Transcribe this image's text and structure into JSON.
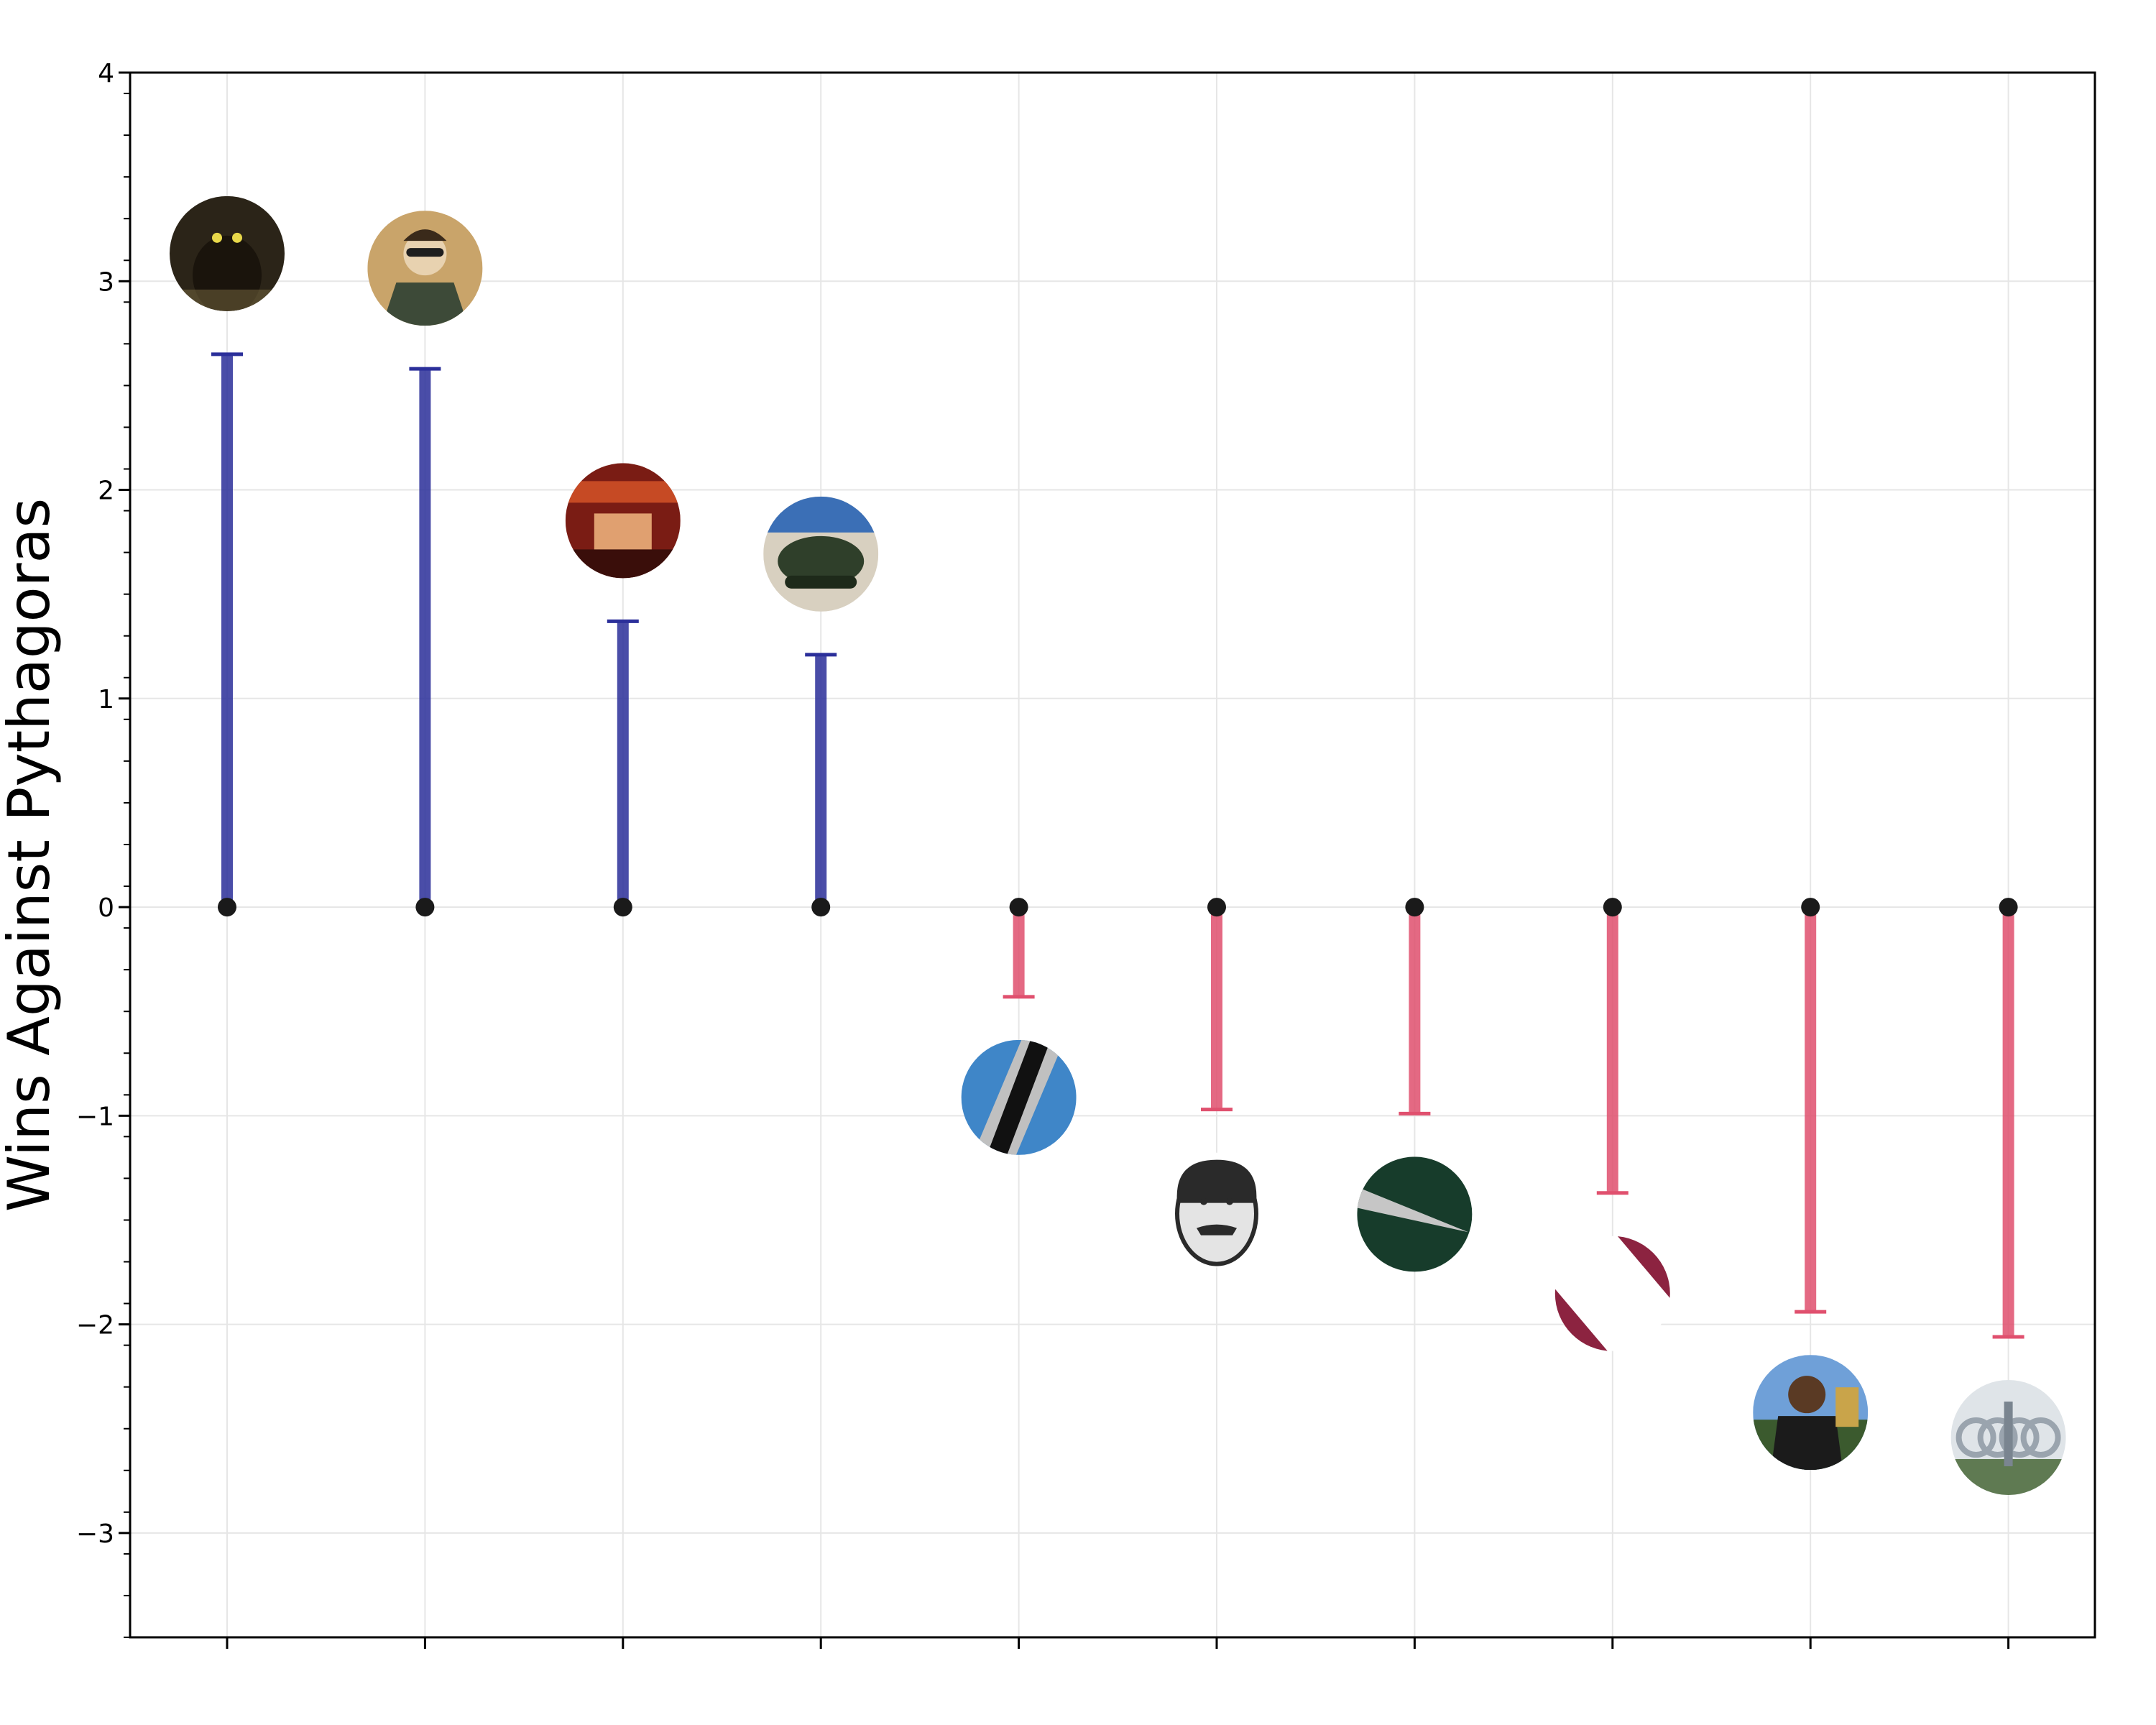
{
  "chart_data": {
    "type": "lollipop",
    "ylabel": "Wins Against Pythagoras",
    "ylim": [
      -3.5,
      4
    ],
    "yticks": [
      -3,
      -2,
      -1,
      0,
      1,
      2,
      3,
      4
    ],
    "ytick_labels": [
      "−3",
      "−2",
      "−1",
      "0",
      "1",
      "2",
      "3",
      "4"
    ],
    "grid": true,
    "positive_color": "#2b2f9a",
    "negative_color": "#e0506e",
    "base_dot_color": "#1a1a1a",
    "items": [
      {
        "value": 2.65,
        "icon": "glowing-eyes-cat-icon",
        "icon_colors": [
          "#2b2418",
          "#7a6a40",
          "#e8d84a"
        ]
      },
      {
        "value": 2.58,
        "icon": "pilot-with-aviators-icon",
        "icon_colors": [
          "#c9a46a",
          "#3d4a38",
          "#e8d2b0"
        ]
      },
      {
        "value": 1.37,
        "icon": "movie-poster-oceans-eight-icon",
        "icon_colors": [
          "#7a1c14",
          "#c64a24",
          "#e0a070"
        ]
      },
      {
        "value": 1.21,
        "icon": "bobsled-team-icon",
        "icon_colors": [
          "#3b6fb6",
          "#2f3f2a",
          "#d8d0c0"
        ]
      },
      {
        "value": -0.43,
        "icon": "blue-black-striped-flag-icon",
        "icon_colors": [
          "#3f86c8",
          "#111111",
          "#c0c0c0"
        ]
      },
      {
        "value": -0.97,
        "icon": "mustached-man-engraving-icon",
        "icon_colors": [
          "#2a2a2a",
          "#9a9a9a",
          "#e4e4e4"
        ]
      },
      {
        "value": -0.99,
        "icon": "dark-green-flag-icon",
        "icon_colors": [
          "#173c2b",
          "#c6c6c6"
        ]
      },
      {
        "value": -1.37,
        "icon": "maroon-white-flag-icon",
        "icon_colors": [
          "#8c2340",
          "#ffffff"
        ]
      },
      {
        "value": -1.94,
        "icon": "football-player-trophy-icon",
        "icon_colors": [
          "#6fa0d8",
          "#1b1b1b",
          "#c9a44a"
        ]
      },
      {
        "value": -2.06,
        "icon": "olympic-rings-monument-icon",
        "icon_colors": [
          "#9aa4ae",
          "#5f7a52",
          "#dfe4e8"
        ]
      }
    ]
  }
}
